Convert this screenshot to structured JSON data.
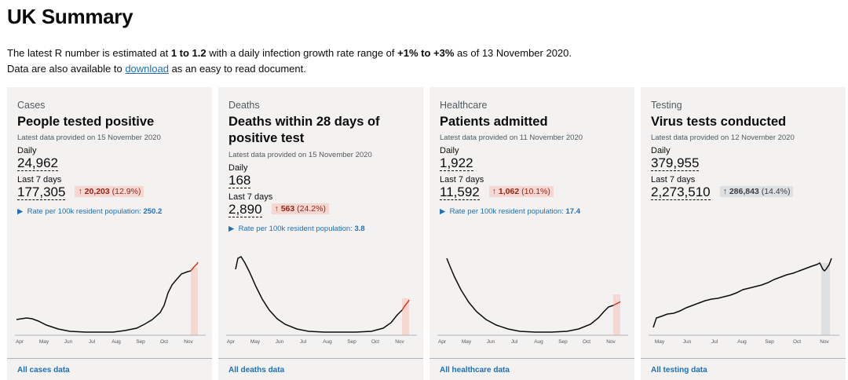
{
  "page": {
    "title": "UK Summary",
    "intro_line1": {
      "a": "The latest R number is estimated at ",
      "b": "1 to 1.2",
      "c": " with a daily infection growth rate range of ",
      "d": "+1% to +3%",
      "e": " as of 13 November 2020."
    },
    "intro_line2": {
      "a": "Data are also available to ",
      "link": "download",
      "b": " as an easy to read document."
    }
  },
  "colors": {
    "accent_red": "#d4351c",
    "highlight_red": "#f6d7d2",
    "highlight_grey": "#dee0e2",
    "link_blue": "#1d70b8",
    "card_bg": "#f3f2f1"
  },
  "cards": [
    {
      "category": "Cases",
      "heading": "People tested positive",
      "latest": "Latest data provided on 15 November 2020",
      "daily_label": "Daily",
      "daily_value": "24,962",
      "week_label": "Last 7 days",
      "week_value": "177,305",
      "change_arrow": "↑",
      "change_value": "20,203",
      "change_pct": "(12.9%)",
      "rate_arrow": "▶",
      "rate_text": "Rate per 100k resident population: ",
      "rate_value": "250.2",
      "footer_link": "All cases data",
      "axis_labels": [
        "Apr",
        "May",
        "Jun",
        "Jul",
        "Aug",
        "Sep",
        "Oct",
        "Nov"
      ]
    },
    {
      "category": "Deaths",
      "heading": "Deaths within 28 days of positive test",
      "latest": "Latest data provided on 15 November 2020",
      "daily_label": "Daily",
      "daily_value": "168",
      "week_label": "Last 7 days",
      "week_value": "2,890",
      "change_arrow": "↑",
      "change_value": "563",
      "change_pct": "(24.2%)",
      "rate_arrow": "▶",
      "rate_text": "Rate per 100k resident population: ",
      "rate_value": "3.8",
      "footer_link": "All deaths data",
      "axis_labels": [
        "Apr",
        "May",
        "Jun",
        "Jul",
        "Aug",
        "Sep",
        "Oct",
        "Nov"
      ]
    },
    {
      "category": "Healthcare",
      "heading": "Patients admitted",
      "latest": "Latest data provided on 11 November 2020",
      "daily_label": "Daily",
      "daily_value": "1,922",
      "week_label": "Last 7 days",
      "week_value": "11,592",
      "change_arrow": "↑",
      "change_value": "1,062",
      "change_pct": "(10.1%)",
      "rate_arrow": "▶",
      "rate_text": "Rate per 100k resident population: ",
      "rate_value": "17.4",
      "footer_link": "All healthcare data",
      "axis_labels": [
        "Apr",
        "May",
        "Jun",
        "Jul",
        "Aug",
        "Sep",
        "Oct",
        "Nov"
      ]
    },
    {
      "category": "Testing",
      "heading": "Virus tests conducted",
      "latest": "Latest data provided on 12 November 2020",
      "daily_label": "Daily",
      "daily_value": "379,955",
      "week_label": "Last 7 days",
      "week_value": "2,273,510",
      "change_arrow": "↑",
      "change_value": "286,843",
      "change_pct": "(14.4%)",
      "footer_link": "All testing data",
      "axis_labels": [
        "May",
        "Jun",
        "Jul",
        "Aug",
        "Sep",
        "Oct",
        "Nov"
      ]
    }
  ]
}
